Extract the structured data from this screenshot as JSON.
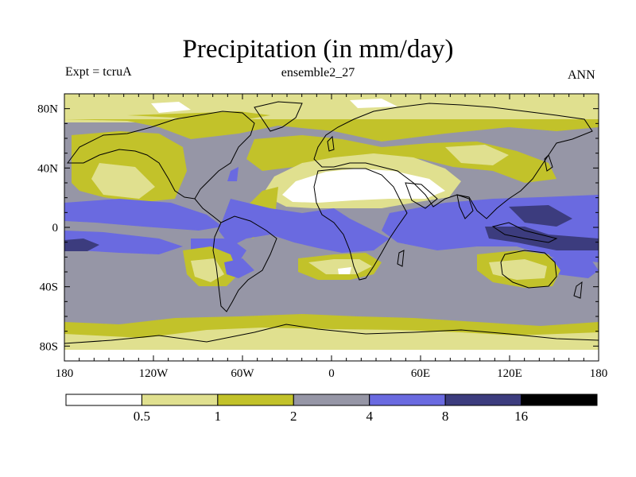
{
  "title": "Precipitation (in mm/day)",
  "experiment": "Expt = tcruA",
  "ensemble": "ensemble2_27",
  "period": "ANN",
  "map": {
    "extent": {
      "lon": [
        -180,
        180
      ],
      "lat": [
        -90,
        90
      ]
    },
    "x_ticks": [
      {
        "lon": -180,
        "label": "180"
      },
      {
        "lon": -120,
        "label": "120W"
      },
      {
        "lon": -60,
        "label": "60W"
      },
      {
        "lon": 0,
        "label": "0"
      },
      {
        "lon": 60,
        "label": "60E"
      },
      {
        "lon": 120,
        "label": "120E"
      },
      {
        "lon": 180,
        "label": "180"
      }
    ],
    "y_ticks": [
      {
        "lat": 80,
        "label": "80N"
      },
      {
        "lat": 40,
        "label": "40N"
      },
      {
        "lat": 0,
        "label": "0"
      },
      {
        "lat": -40,
        "label": "40S"
      },
      {
        "lat": -80,
        "label": "80S"
      }
    ]
  },
  "colorbar": {
    "boundaries": [
      "0.5",
      "1",
      "2",
      "4",
      "8",
      "16"
    ],
    "colors": [
      "#ffffff",
      "#e0e08f",
      "#c2c22a",
      "#9696a6",
      "#6a6ae0",
      "#3c3c7e",
      "#000000"
    ]
  }
}
